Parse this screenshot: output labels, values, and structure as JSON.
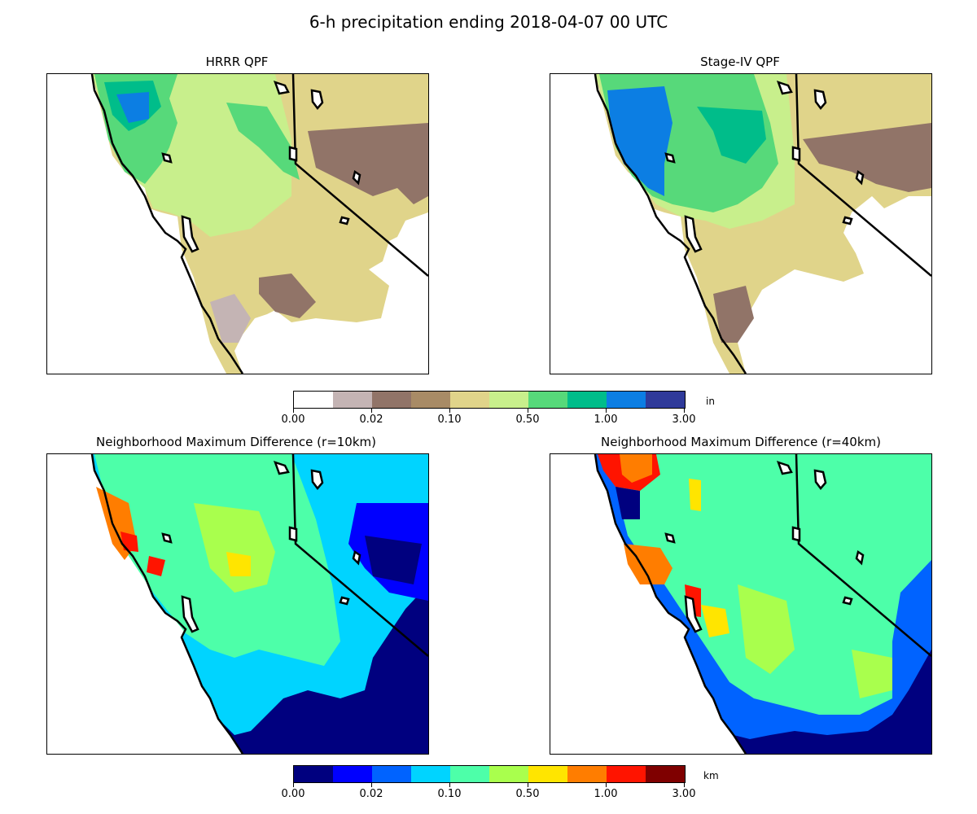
{
  "figure": {
    "title": "6-h precipitation ending 2018-04-07 00 UTC"
  },
  "panels": [
    {
      "id": "hrrr",
      "title": "HRRR QPF"
    },
    {
      "id": "stage4",
      "title": "Stage-IV QPF"
    },
    {
      "id": "nmd10",
      "title": "Neighborhood Maximum Difference (r=10km)"
    },
    {
      "id": "nmd40",
      "title": "Neighborhood Maximum Difference (r=40km)"
    }
  ],
  "colorbars": {
    "precip": {
      "unit": "in",
      "colors": [
        "#ffffff",
        "#c4b4b4",
        "#917468",
        "#a88b66",
        "#e0d48a",
        "#c8ef8c",
        "#57d97a",
        "#00bd8a",
        "#0c7ee3",
        "#2f3a9a"
      ],
      "ticks": [
        "0.00",
        "0.02",
        "0.10",
        "0.50",
        "1.00",
        "3.00"
      ]
    },
    "diff": {
      "unit": "km",
      "colors": [
        "#00007f",
        "#0000ff",
        "#0063ff",
        "#00d4ff",
        "#4dffa9",
        "#a9ff4d",
        "#ffe500",
        "#ff7d00",
        "#ff1400",
        "#7f0000"
      ],
      "ticks": [
        "0.00",
        "0.02",
        "0.10",
        "0.50",
        "1.00",
        "3.00"
      ]
    }
  }
}
